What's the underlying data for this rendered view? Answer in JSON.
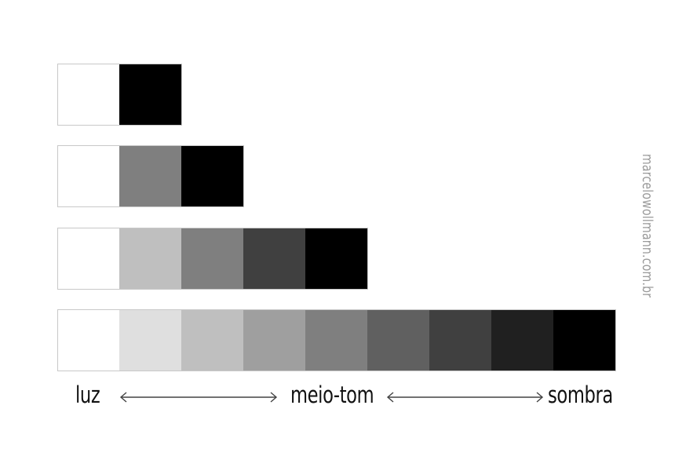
{
  "scales": [
    {
      "name": "2 values",
      "tones": [
        "#ffffff",
        "#000000"
      ]
    },
    {
      "name": "3 values",
      "tones": [
        "#ffffff",
        "#7f7f7f",
        "#000000"
      ]
    },
    {
      "name": "5 values",
      "tones": [
        "#ffffff",
        "#bfbfbf",
        "#7f7f7f",
        "#404040",
        "#000000"
      ]
    },
    {
      "name": "9 values",
      "tones": [
        "#ffffff",
        "#dfdfdf",
        "#bfbfbf",
        "#9f9f9f",
        "#7f7f7f",
        "#606060",
        "#404040",
        "#202020",
        "#000000"
      ]
    }
  ],
  "labels": {
    "light": "luz",
    "midtone": "meio-tom",
    "shadow": "sombra"
  },
  "watermark": "marcelowollmann.com.br",
  "colors": {
    "background": "#ffffff",
    "text": "#111111",
    "arrow": "#444444",
    "watermark": "#9a9a9a",
    "border": "#c8c8c8"
  }
}
